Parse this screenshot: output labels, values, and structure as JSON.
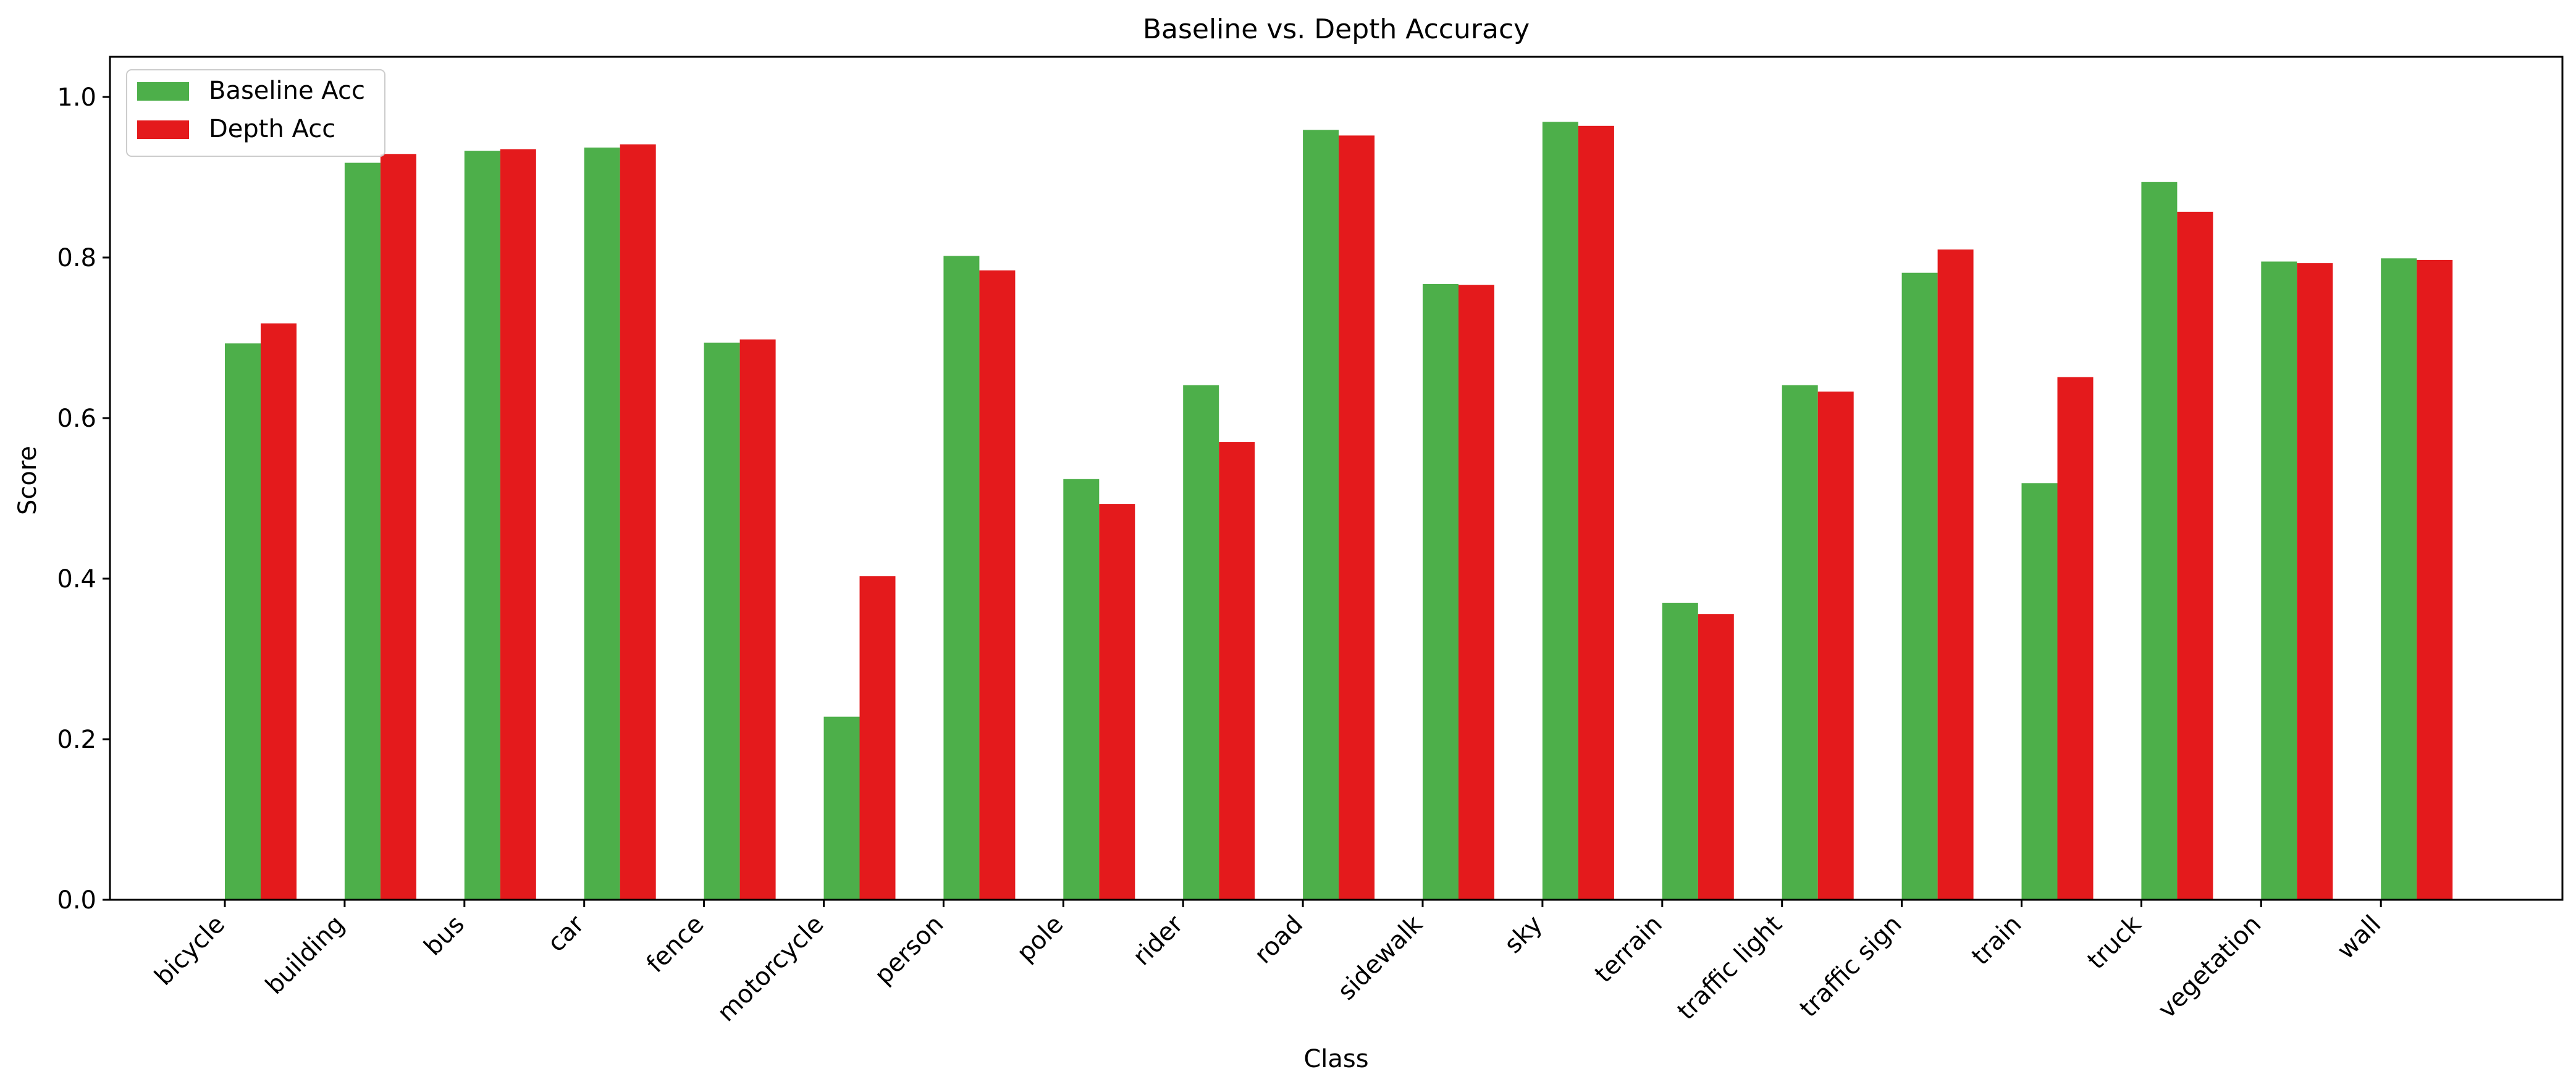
{
  "chart_data": {
    "type": "bar",
    "title": "Baseline vs. Depth Accuracy",
    "xlabel": "Class",
    "ylabel": "Score",
    "ylim": [
      0,
      1.05
    ],
    "yticks": [
      0.0,
      0.2,
      0.4,
      0.6,
      0.8,
      1.0
    ],
    "ytick_labels": [
      "0.0",
      "0.2",
      "0.4",
      "0.6",
      "0.8",
      "1.0"
    ],
    "grid": false,
    "legend_position": "top-left",
    "categories": [
      "bicycle",
      "building",
      "bus",
      "car",
      "fence",
      "motorcycle",
      "person",
      "pole",
      "rider",
      "road",
      "sidewalk",
      "sky",
      "terrain",
      "traffic light",
      "traffic sign",
      "train",
      "truck",
      "vegetation",
      "wall"
    ],
    "series": [
      {
        "name": "Baseline Acc",
        "color": "#4daf4a",
        "values": [
          0.693,
          0.918,
          0.933,
          0.937,
          0.694,
          0.228,
          0.802,
          0.524,
          0.641,
          0.959,
          0.767,
          0.969,
          0.37,
          0.641,
          0.781,
          0.519,
          0.894,
          0.795,
          0.799
        ]
      },
      {
        "name": "Depth Acc",
        "color": "#e41a1c",
        "values": [
          0.718,
          0.929,
          0.935,
          0.941,
          0.698,
          0.403,
          0.784,
          0.493,
          0.57,
          0.952,
          0.766,
          0.964,
          0.356,
          0.633,
          0.81,
          0.651,
          0.857,
          0.793,
          0.797
        ]
      }
    ]
  }
}
